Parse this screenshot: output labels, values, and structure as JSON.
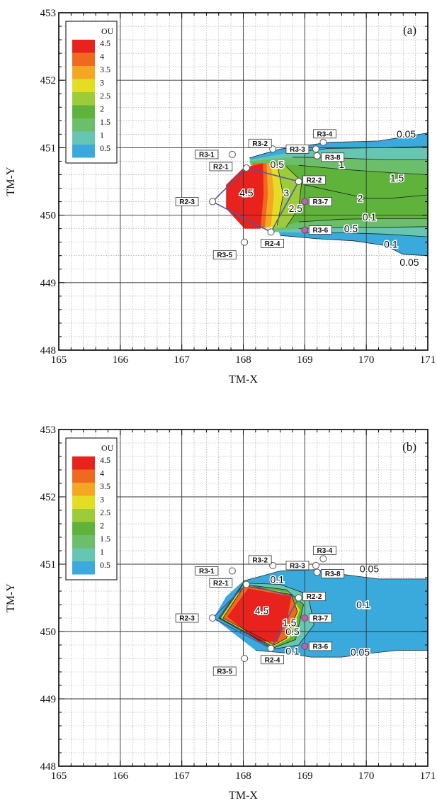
{
  "chart_data": [
    {
      "type": "contour",
      "panel_label": "(a)",
      "xlabel": "TM-X",
      "ylabel": "TM-Y",
      "xlim": [
        165,
        171
      ],
      "ylim": [
        448,
        453
      ],
      "xticks": [
        "165",
        "166",
        "167",
        "168",
        "169",
        "170",
        "171"
      ],
      "yticks": [
        "448",
        "449",
        "450",
        "451",
        "452",
        "453"
      ],
      "legend": {
        "title": "OU",
        "levels": [
          "4.5",
          "4",
          "3.5",
          "3",
          "2.5",
          "2",
          "1.5",
          "1",
          "0.5"
        ],
        "colors": [
          "#e8221c",
          "#ef6a1f",
          "#f5a623",
          "#e3de23",
          "#9ccc3a",
          "#5fb33a",
          "#6cbf6a",
          "#66c6b2",
          "#3aa9dc"
        ],
        "placement": "top-left"
      },
      "contour_labels": [
        "4.5",
        "3",
        "2.5",
        "2",
        "1.5",
        "1",
        "0.5",
        "0.5",
        "0.1",
        "0.1",
        "0.05",
        "0.05"
      ],
      "receptors": [
        {
          "name": "R2-1",
          "x": 168.05,
          "y": 450.7
        },
        {
          "name": "R2-2",
          "x": 168.9,
          "y": 450.5
        },
        {
          "name": "R2-3",
          "x": 167.5,
          "y": 450.2
        },
        {
          "name": "R2-4",
          "x": 168.45,
          "y": 449.75
        },
        {
          "name": "R3-1",
          "x": 167.82,
          "y": 450.9
        },
        {
          "name": "R3-2",
          "x": 168.48,
          "y": 450.98
        },
        {
          "name": "R3-3",
          "x": 169.18,
          "y": 450.98
        },
        {
          "name": "R3-4",
          "x": 169.3,
          "y": 451.08
        },
        {
          "name": "R3-5",
          "x": 168.02,
          "y": 449.6
        },
        {
          "name": "R3-6",
          "x": 169.0,
          "y": 449.78
        },
        {
          "name": "R3-7",
          "x": 169.0,
          "y": 450.2
        },
        {
          "name": "R3-8",
          "x": 169.2,
          "y": 450.88
        }
      ]
    },
    {
      "type": "contour",
      "panel_label": "(b)",
      "xlabel": "TM-X",
      "ylabel": "TM-Y",
      "xlim": [
        165,
        171
      ],
      "ylim": [
        448,
        453
      ],
      "xticks": [
        "165",
        "166",
        "167",
        "168",
        "169",
        "170",
        "171"
      ],
      "yticks": [
        "448",
        "449",
        "450",
        "451",
        "452",
        "453"
      ],
      "legend": {
        "title": "OU",
        "levels": [
          "4.5",
          "4",
          "3.5",
          "3",
          "2.5",
          "2",
          "1.5",
          "1",
          "0.5"
        ],
        "colors": [
          "#e8221c",
          "#ef6a1f",
          "#f5a623",
          "#e3de23",
          "#9ccc3a",
          "#5fb33a",
          "#6cbf6a",
          "#66c6b2",
          "#3aa9dc"
        ],
        "placement": "top-left"
      },
      "contour_labels": [
        "4.5",
        "1.5",
        "0.5",
        "0.1",
        "0.1",
        "0.1",
        "0.05",
        "0.05"
      ],
      "receptors": [
        {
          "name": "R2-1",
          "x": 168.05,
          "y": 450.7
        },
        {
          "name": "R2-2",
          "x": 168.9,
          "y": 450.5
        },
        {
          "name": "R2-3",
          "x": 167.5,
          "y": 450.2
        },
        {
          "name": "R2-4",
          "x": 168.45,
          "y": 449.75
        },
        {
          "name": "R3-1",
          "x": 167.82,
          "y": 450.9
        },
        {
          "name": "R3-2",
          "x": 168.48,
          "y": 450.98
        },
        {
          "name": "R3-3",
          "x": 169.18,
          "y": 450.98
        },
        {
          "name": "R3-4",
          "x": 169.3,
          "y": 451.08
        },
        {
          "name": "R3-5",
          "x": 168.02,
          "y": 449.6
        },
        {
          "name": "R3-6",
          "x": 169.0,
          "y": 449.78
        },
        {
          "name": "R3-7",
          "x": 169.0,
          "y": 450.2
        },
        {
          "name": "R3-8",
          "x": 169.2,
          "y": 450.88
        }
      ]
    }
  ]
}
